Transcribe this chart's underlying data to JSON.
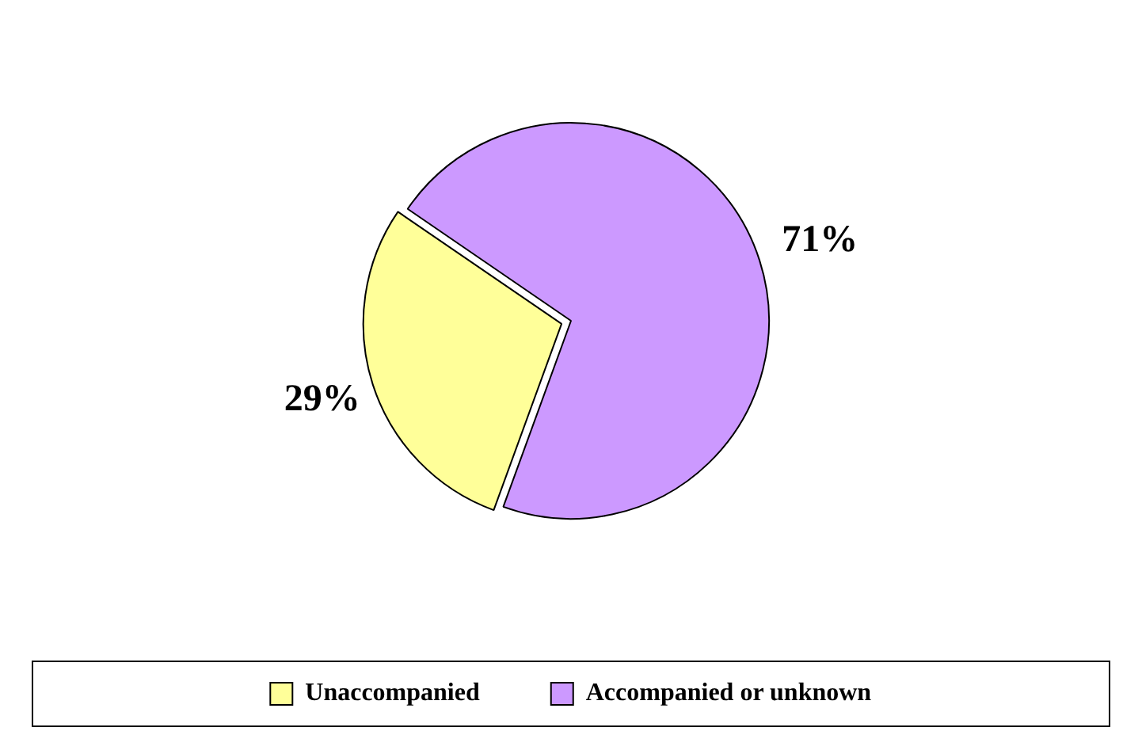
{
  "chart_data": {
    "type": "pie",
    "categories": [
      "Unaccompanied",
      "Accompanied or unknown"
    ],
    "values": [
      29,
      71
    ],
    "colors": [
      "#ffff99",
      "#cc99ff"
    ],
    "value_labels": [
      "29%",
      "71%"
    ],
    "legend": "bottom"
  }
}
